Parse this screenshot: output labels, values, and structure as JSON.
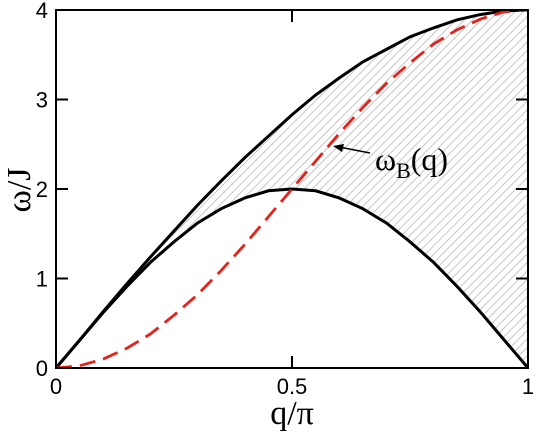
{
  "chart_data": {
    "type": "line",
    "xlabel": "q/π",
    "ylabel": "ω/J",
    "xlim": [
      0,
      1
    ],
    "ylim": [
      0,
      4
    ],
    "xticks": [
      0,
      0.5,
      1
    ],
    "xtick_labels": [
      "0",
      "0.5",
      "1"
    ],
    "yticks": [
      0,
      1,
      2,
      3,
      4
    ],
    "ytick_labels": [
      "0",
      "1",
      "2",
      "3",
      "4"
    ],
    "grid": false,
    "shaded_region": "hatched grey band between the lower and upper black curves",
    "series": [
      {
        "color": "#000000",
        "style": "solid",
        "x": [
          0,
          0.05,
          0.1,
          0.15,
          0.2,
          0.25,
          0.3,
          0.35,
          0.4,
          0.45,
          0.5,
          0.55,
          0.6,
          0.65,
          0.7,
          0.75,
          0.8,
          0.85,
          0.9,
          0.95,
          1
        ],
        "y": [
          0,
          0.31,
          0.62,
          0.91,
          1.18,
          1.41,
          1.62,
          1.78,
          1.9,
          1.98,
          2.0,
          1.98,
          1.9,
          1.78,
          1.62,
          1.41,
          1.18,
          0.91,
          0.62,
          0.31,
          0
        ]
      },
      {
        "color": "#000000",
        "style": "solid",
        "x": [
          0,
          0.05,
          0.1,
          0.15,
          0.2,
          0.25,
          0.3,
          0.35,
          0.4,
          0.45,
          0.5,
          0.55,
          0.6,
          0.65,
          0.7,
          0.75,
          0.8,
          0.85,
          0.9,
          0.95,
          1
        ],
        "y": [
          0,
          0.31,
          0.63,
          0.94,
          1.24,
          1.53,
          1.82,
          2.09,
          2.35,
          2.59,
          2.83,
          3.05,
          3.24,
          3.42,
          3.56,
          3.7,
          3.8,
          3.89,
          3.95,
          3.99,
          4.0
        ]
      },
      {
        "name": "ω_B(q)",
        "color": "#e8201a",
        "style": "dashed",
        "x": [
          0,
          0.05,
          0.1,
          0.15,
          0.2,
          0.25,
          0.3,
          0.35,
          0.4,
          0.45,
          0.5,
          0.55,
          0.6,
          0.65,
          0.7,
          0.75,
          0.8,
          0.85,
          0.9,
          0.95,
          1
        ],
        "y": [
          0,
          0.025,
          0.1,
          0.22,
          0.38,
          0.59,
          0.82,
          1.09,
          1.38,
          1.69,
          2.0,
          2.31,
          2.62,
          2.91,
          3.18,
          3.41,
          3.62,
          3.78,
          3.9,
          3.98,
          4.0
        ]
      }
    ],
    "annotations": [
      {
        "text_main": "ω",
        "text_sub": "B",
        "text_tail": "(q)",
        "target_x": 0.575,
        "target_y": 2.43
      }
    ]
  }
}
